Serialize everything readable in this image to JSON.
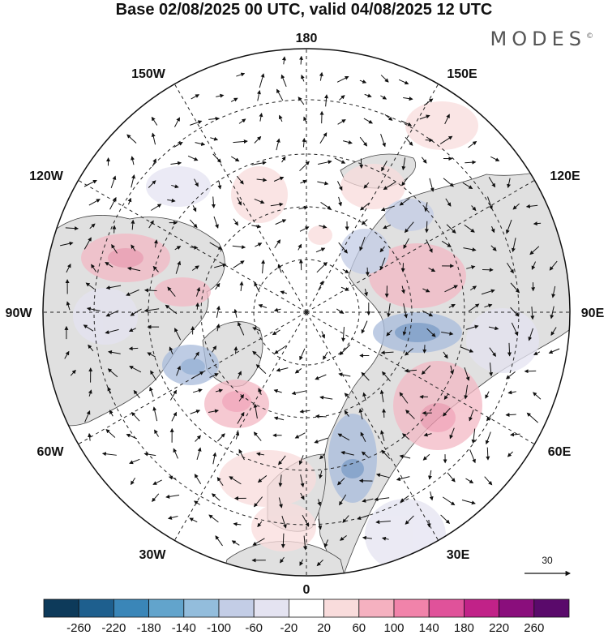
{
  "title": "Base 02/08/2025 00 UTC, valid 04/08/2025 12 UTC",
  "brand": "MODES",
  "brand_mark": "©",
  "longitude_labels": {
    "top": "180",
    "top_left": "150W",
    "top_right": "150E",
    "upper_left": "120W",
    "upper_right": "120E",
    "left": "90W",
    "right": "90E",
    "lower_left": "60W",
    "lower_right": "60E",
    "bottom_left": "30W",
    "bottom_right": "30E",
    "bottom": "0"
  },
  "wind_reference": {
    "value": "30"
  },
  "colorbar": {
    "colors": [
      "#0d3a5a",
      "#1e5f8e",
      "#3a86b8",
      "#62a4cc",
      "#93bddc",
      "#c3cde6",
      "#e4e3f1",
      "#ffffff",
      "#f9dcdc",
      "#f5b1c0",
      "#f183aa",
      "#e0529a",
      "#c12288",
      "#8a0e7c",
      "#5a0a6b"
    ],
    "tick_labels": [
      "-260",
      "-220",
      "-180",
      "-140",
      "-100",
      "-60",
      "-20",
      "20",
      "60",
      "100",
      "140",
      "180",
      "220",
      "260"
    ]
  },
  "colors": {
    "land": "#e0e0e0",
    "ocean": "#ffffff",
    "positive_anomaly": "#f3b8c4",
    "negative_anomaly": "#a9bcdc"
  }
}
